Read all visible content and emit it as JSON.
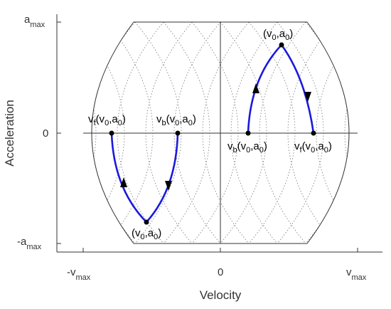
{
  "axes": {
    "xlabel": "Velocity",
    "ylabel": "Acceleration",
    "x_ticks": {
      "neg": {
        "main": "-v",
        "sub": "max"
      },
      "zero": "0",
      "pos": {
        "main": "v",
        "sub": "max"
      }
    },
    "y_ticks": {
      "top": {
        "main": "a",
        "sub": "max"
      },
      "zero": "0",
      "bottom": {
        "main": "-a",
        "sub": "max"
      }
    }
  },
  "labels": {
    "top_point": {
      "a": "(v",
      "b": "0",
      "c": ",a",
      "d": "0",
      "e": ")"
    },
    "bottom_point": {
      "a": "(v",
      "b": "0",
      "c": ",a",
      "d": "0",
      "e": ")"
    },
    "vf_left": {
      "a": "v",
      "b": "f",
      "c": "(v",
      "d": "0",
      "e": ",a",
      "f": "0",
      "g": ")"
    },
    "vb_left": {
      "a": "v",
      "b": "b",
      "c": "(v",
      "d": "0",
      "e": ",a",
      "f": "0",
      "g": ")"
    },
    "vb_right": {
      "a": "v",
      "b": "b",
      "c": "(v",
      "d": "0",
      "e": ",a",
      "f": "0",
      "g": ")"
    },
    "vf_right": {
      "a": "v",
      "b": "f",
      "c": "(v",
      "d": "0",
      "e": ",a",
      "f": "0",
      "g": ")"
    }
  },
  "colors": {
    "trajectory": "#1a1adb",
    "boundary": "#333333",
    "grid": "#666666"
  }
}
